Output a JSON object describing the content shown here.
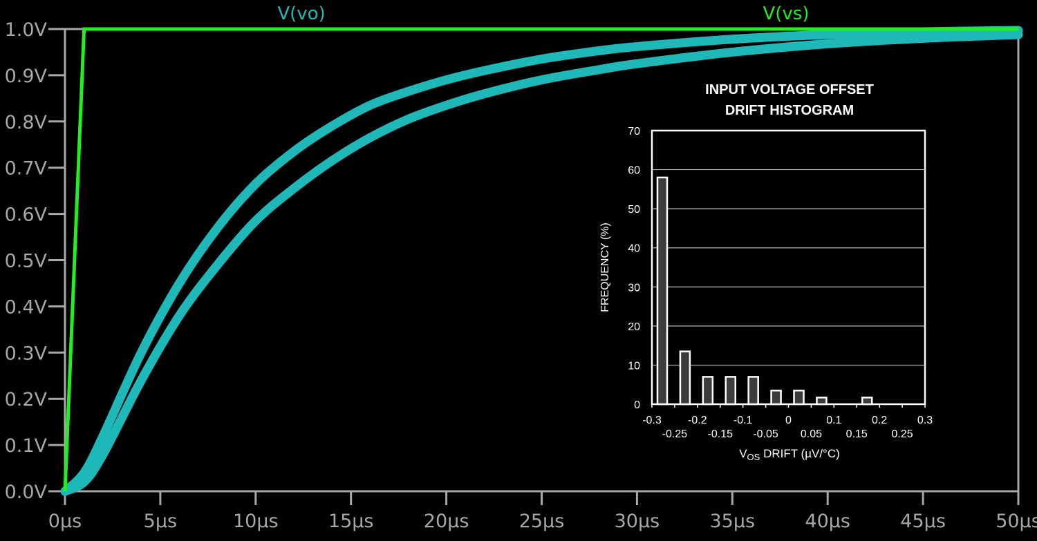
{
  "chart_data": [
    {
      "type": "line",
      "title": "",
      "xlabel": "",
      "ylabel": "",
      "x_unit": "µs",
      "y_unit": "V",
      "xlim": [
        0,
        50
      ],
      "ylim": [
        0,
        1.0
      ],
      "grid": false,
      "x_ticks": [
        "0µs",
        "5µs",
        "10µs",
        "15µs",
        "20µs",
        "25µs",
        "30µs",
        "35µs",
        "40µs",
        "45µs",
        "50µs"
      ],
      "y_ticks": [
        "0.0V",
        "0.1V",
        "0.2V",
        "0.3V",
        "0.4V",
        "0.5V",
        "0.6V",
        "0.7V",
        "0.8V",
        "0.9V",
        "1.0V"
      ],
      "legend": [
        {
          "name": "V(vo)",
          "color": "#1fb8b8"
        },
        {
          "name": "V(vs)",
          "color": "#22ee22"
        }
      ],
      "series": [
        {
          "name": "V(vs)",
          "color": "#22ee22",
          "x": [
            0,
            0.1,
            0.3,
            0.5,
            0.7,
            0.9,
            1.0,
            50
          ],
          "y": [
            0,
            0.1,
            0.3,
            0.5,
            0.7,
            0.9,
            1.0,
            1.0
          ]
        },
        {
          "name": "V(vo) upper envelope",
          "color": "#1fb8b8",
          "x": [
            0,
            1,
            2,
            4,
            6,
            8,
            10,
            12,
            14,
            16,
            18,
            20,
            22,
            25,
            28,
            30,
            35,
            40,
            45,
            50
          ],
          "y": [
            0,
            0.04,
            0.12,
            0.3,
            0.45,
            0.57,
            0.665,
            0.735,
            0.79,
            0.835,
            0.865,
            0.89,
            0.91,
            0.935,
            0.953,
            0.962,
            0.978,
            0.988,
            0.994,
            0.997
          ]
        },
        {
          "name": "V(vo) lower envelope",
          "color": "#1fb8b8",
          "x": [
            0,
            1,
            2,
            4,
            6,
            8,
            10,
            12,
            14,
            16,
            18,
            20,
            22,
            25,
            28,
            30,
            35,
            40,
            45,
            50
          ],
          "y": [
            0,
            0.02,
            0.08,
            0.24,
            0.38,
            0.49,
            0.585,
            0.655,
            0.715,
            0.765,
            0.805,
            0.835,
            0.86,
            0.89,
            0.912,
            0.925,
            0.95,
            0.968,
            0.98,
            0.988
          ]
        }
      ]
    },
    {
      "type": "bar",
      "title": "INPUT VOLTAGE OFFSET DRIFT HISTOGRAM",
      "title_lines": [
        "INPUT VOLTAGE OFFSET",
        "DRIFT HISTOGRAM"
      ],
      "xlabel_main": "V",
      "xlabel_sub": "OS",
      "xlabel_rest": " DRIFT (µV/°C)",
      "xlabel": "VOS DRIFT (µV/°C)",
      "ylabel": "FREQUENCY (%)",
      "ylim": [
        0,
        70
      ],
      "xlim": [
        -0.3,
        0.3
      ],
      "grid": true,
      "y_ticks": [
        "0",
        "10",
        "20",
        "30",
        "40",
        "50",
        "60",
        "70"
      ],
      "x_ticks_top": [
        "-0.3",
        "-0.2",
        "-0.1",
        "0",
        "0.1",
        "0.2",
        "0.3"
      ],
      "x_ticks_bottom": [
        "-0.25",
        "-0.15",
        "-0.05",
        "0.05",
        "0.15",
        "0.25"
      ],
      "categories": [
        -0.3,
        -0.25,
        -0.2,
        -0.15,
        -0.1,
        -0.05,
        0,
        0.05,
        0.1,
        0.15,
        0.2,
        0.25
      ],
      "values": [
        58,
        13.5,
        7,
        7,
        7,
        3.5,
        3.5,
        1.7,
        0,
        1.7,
        0,
        0
      ]
    }
  ]
}
